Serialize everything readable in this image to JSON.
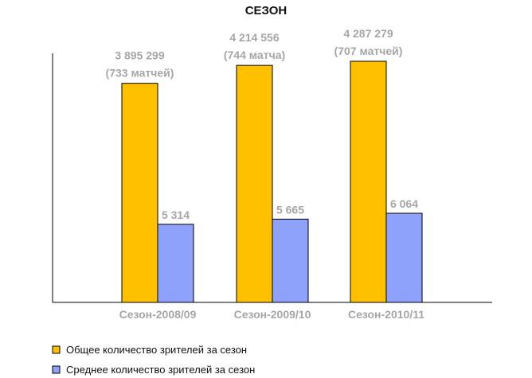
{
  "chart_data": {
    "type": "bar",
    "title": "СЕЗОН",
    "categories": [
      "Сезон-2008/09",
      "Сезон-2009/10",
      "Сезон-2010/11"
    ],
    "series": [
      {
        "name": "Общее количество зрителей за сезон",
        "values": [
          3895299,
          4214556,
          4287279
        ],
        "labels": [
          "3 895 299",
          "4 214 556",
          "4 287 279"
        ],
        "notes": [
          "(733 матчей)",
          "(744 матча)",
          "(707 матчей)"
        ],
        "color": "#ffc000"
      },
      {
        "name": "Среднее количество зрителей за сезон",
        "values": [
          5314,
          5665,
          6064
        ],
        "labels": [
          "5 314",
          "5 665",
          "6 064"
        ],
        "color": "#8ea2fb"
      }
    ],
    "legend_position": "bottom-left",
    "grid": false
  }
}
